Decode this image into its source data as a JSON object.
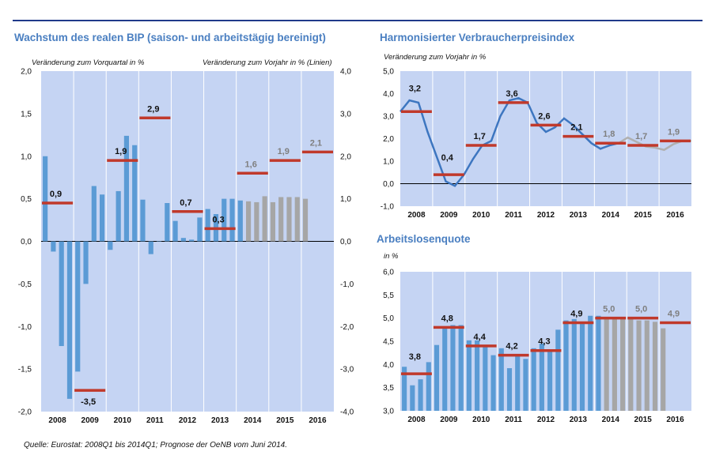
{
  "colors": {
    "background": "#c5d4f3",
    "bar_history": "#5b9bd5",
    "bar_forecast": "#a6a6a6",
    "line_history": "#3d76c0",
    "line_forecast": "#b0b0b0",
    "annual_marker": "#c0392b",
    "title": "#4a7fc1"
  },
  "source": "Quelle: Eurostat: 2008Q1 bis 2014Q1; Prognose der OeNB vom Juni 2014.",
  "chart_data": [
    {
      "id": "bip",
      "type": "bar",
      "title": "Wachstum des realen BIP (saison- und arbeitstägig bereinigt)",
      "ylabel_left": "Veränderung zum Vorquartal in %",
      "ylabel_right": "Veränderung zum Vorjahr in % (Linien)",
      "ylim_left": [
        -2.0,
        2.0
      ],
      "ylim_right": [
        -4.0,
        4.0
      ],
      "yticks_left": [
        "2,0",
        "1,5",
        "1,0",
        "0,5",
        "0,0",
        "-0,5",
        "-1,0",
        "-1,5",
        "-2,0"
      ],
      "yticks_right": [
        "4,0",
        "3,0",
        "2,0",
        "1,0",
        "0,0",
        "-1,0",
        "-2,0",
        "-3,0",
        "-4,0"
      ],
      "years": [
        "2008",
        "2009",
        "2010",
        "2011",
        "2012",
        "2013",
        "2014",
        "2015",
        "2016"
      ],
      "quarters_per_year": 4,
      "forecast_from_index": 25,
      "quarterly_values": [
        1.0,
        -0.12,
        -1.23,
        -1.85,
        -1.53,
        -0.5,
        0.65,
        0.55,
        -0.1,
        0.59,
        1.24,
        1.13,
        0.49,
        -0.15,
        0.0,
        0.45,
        0.24,
        0.04,
        0.02,
        0.28,
        0.38,
        0.32,
        0.5,
        0.5,
        0.48,
        0.47,
        0.46,
        0.53,
        0.46,
        0.52,
        0.52,
        0.52,
        0.5
      ],
      "annual_values": [
        0.9,
        -3.5,
        1.9,
        2.9,
        0.7,
        0.3,
        1.6,
        1.9,
        2.1
      ],
      "annual_labels": [
        "0,9",
        "-3,5",
        "1,9",
        "2,9",
        "0,7",
        "0,3",
        "1,6",
        "1,9",
        "2,1"
      ],
      "annual_label_forecast": [
        false,
        false,
        false,
        false,
        false,
        false,
        true,
        true,
        true
      ]
    },
    {
      "id": "hvpi",
      "type": "line",
      "title": "Harmonisierter Verbraucherpreisindex",
      "ylabel": "Veränderung zum Vorjahr in %",
      "ylim": [
        -1.0,
        5.0
      ],
      "yticks": [
        "5,0",
        "4,0",
        "3,0",
        "2,0",
        "1,0",
        "0,0",
        "-1,0"
      ],
      "years": [
        "2008",
        "2009",
        "2010",
        "2011",
        "2012",
        "2013",
        "2014",
        "2015",
        "2016"
      ],
      "monthly_values": [
        3.2,
        3.7,
        3.6,
        2.3,
        1.2,
        0.1,
        -0.1,
        0.4,
        1.1,
        1.7,
        1.9,
        3.0,
        3.7,
        3.8,
        3.6,
        2.7,
        2.3,
        2.5,
        2.9,
        2.6,
        2.2,
        1.8,
        1.55,
        1.7,
        1.8,
        2.05,
        1.85,
        1.65,
        1.6,
        1.5,
        1.75,
        1.9,
        1.9
      ],
      "forecast_from_index": 24,
      "annual_values": [
        3.2,
        0.4,
        1.7,
        3.6,
        2.6,
        2.1,
        1.8,
        1.7,
        1.9
      ],
      "annual_labels": [
        "3,2",
        "0,4",
        "1,7",
        "3,6",
        "2,6",
        "2,1",
        "1,8",
        "1,7",
        "1,9"
      ],
      "annual_label_forecast": [
        false,
        false,
        false,
        false,
        false,
        false,
        true,
        true,
        true
      ]
    },
    {
      "id": "alq",
      "type": "bar",
      "title": "Arbeitslosenquote",
      "ylabel": "in %",
      "ylim": [
        3.0,
        6.0
      ],
      "yticks": [
        "6,0",
        "5,5",
        "5,0",
        "4,5",
        "4,0",
        "3,5",
        "3,0"
      ],
      "years": [
        "2008",
        "2009",
        "2010",
        "2011",
        "2012",
        "2013",
        "2014",
        "2015",
        "2016"
      ],
      "quarters_per_year": 4,
      "forecast_from_index": 25,
      "quarterly_values": [
        3.95,
        3.55,
        3.68,
        4.05,
        4.42,
        4.82,
        4.85,
        4.85,
        4.52,
        4.52,
        4.38,
        4.2,
        4.35,
        3.92,
        4.22,
        4.12,
        4.35,
        4.45,
        4.3,
        4.75,
        4.95,
        4.98,
        4.88,
        5.05,
        5.05,
        5.0,
        5.0,
        5.0,
        5.02,
        4.95,
        4.95,
        4.92,
        4.78
      ],
      "annual_values": [
        3.8,
        4.8,
        4.4,
        4.2,
        4.3,
        4.9,
        5.0,
        5.0,
        4.9
      ],
      "annual_labels": [
        "3,8",
        "4,8",
        "4,4",
        "4,2",
        "4,3",
        "4,9",
        "5,0",
        "5,0",
        "4,9"
      ],
      "annual_label_forecast": [
        false,
        false,
        false,
        false,
        false,
        false,
        true,
        true,
        true
      ]
    }
  ]
}
